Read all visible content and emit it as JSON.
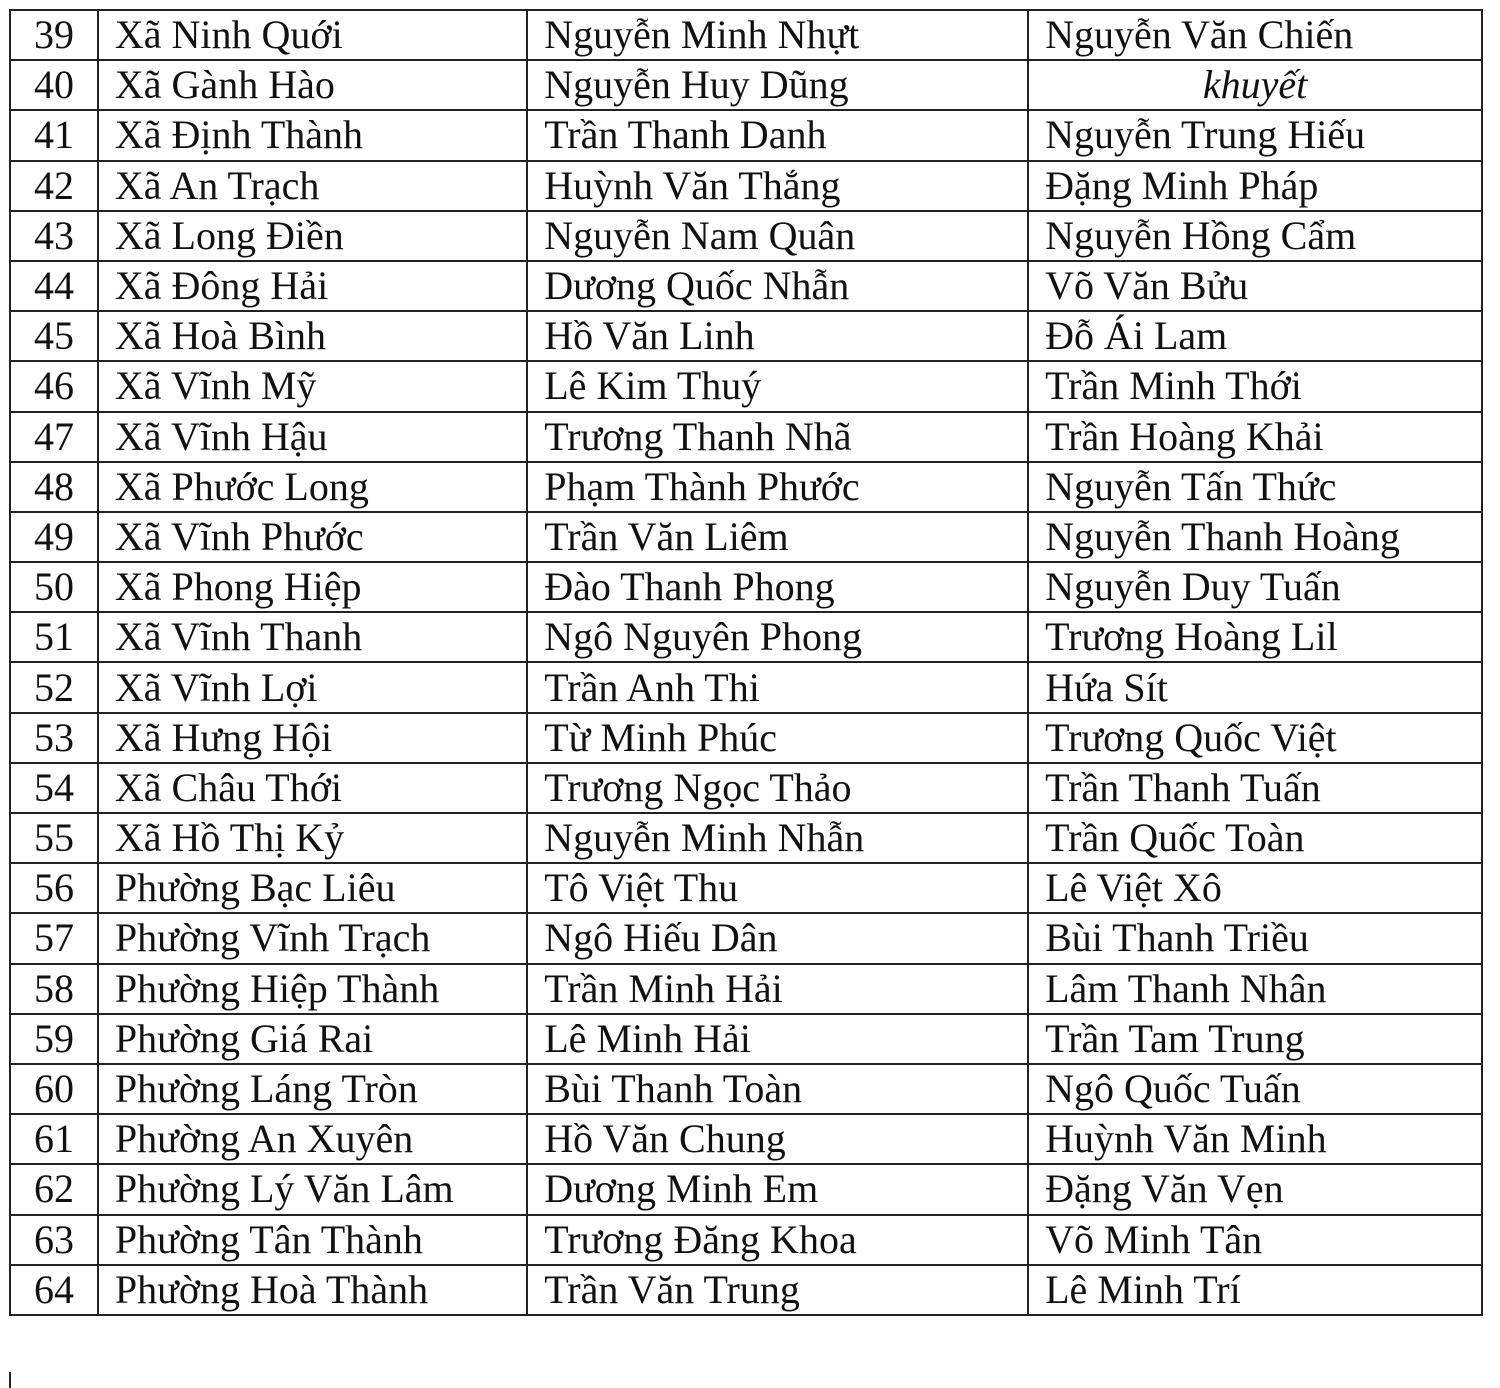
{
  "table": {
    "rows": [
      [
        "39",
        "Xã Ninh Quới",
        "Nguyễn Minh Nhựt",
        "Nguyễn Văn Chiến"
      ],
      [
        "40",
        "Xã Gành Hào",
        "Nguyễn Huy Dũng",
        "khuyết"
      ],
      [
        "41",
        "Xã Định Thành",
        "Trần Thanh Danh",
        "Nguyễn Trung Hiếu"
      ],
      [
        "42",
        "Xã An Trạch",
        "Huỳnh Văn Thắng",
        "Đặng Minh Pháp"
      ],
      [
        "43",
        "Xã Long Điền",
        "Nguyễn Nam Quân",
        "Nguyễn Hồng Cẩm"
      ],
      [
        "44",
        "Xã Đông Hải",
        "Dương Quốc Nhẫn",
        "Võ Văn Bửu"
      ],
      [
        "45",
        "Xã Hoà Bình",
        "Hồ Văn Linh",
        "Đỗ Ái Lam"
      ],
      [
        "46",
        "Xã Vĩnh Mỹ",
        "Lê Kim Thuý",
        "Trần Minh Thới"
      ],
      [
        "47",
        "Xã Vĩnh Hậu",
        "Trương Thanh Nhã",
        "Trần Hoàng Khải"
      ],
      [
        "48",
        "Xã Phước Long",
        "Phạm Thành Phước",
        "Nguyễn Tấn Thức"
      ],
      [
        "49",
        "Xã Vĩnh Phước",
        "Trần Văn Liêm",
        "Nguyễn Thanh Hoàng"
      ],
      [
        "50",
        "Xã Phong Hiệp",
        "Đào Thanh Phong",
        "Nguyễn Duy Tuấn"
      ],
      [
        "51",
        "Xã Vĩnh Thanh",
        "Ngô Nguyên Phong",
        "Trương Hoàng Lil"
      ],
      [
        "52",
        "Xã Vĩnh Lợi",
        "Trần Anh Thi",
        "Hứa Sít"
      ],
      [
        "53",
        "Xã Hưng Hội",
        "Từ Minh Phúc",
        "Trương Quốc Việt"
      ],
      [
        "54",
        "Xã Châu Thới",
        "Trương Ngọc Thảo",
        "Trần Thanh Tuấn"
      ],
      [
        "55",
        "Xã Hồ Thị Kỷ",
        "Nguyễn Minh Nhẫn",
        "Trần Quốc Toàn"
      ],
      [
        "56",
        "Phường Bạc Liêu",
        "Tô Việt Thu",
        "Lê Việt Xô"
      ],
      [
        "57",
        "Phường Vĩnh Trạch",
        "Ngô Hiếu Dân",
        "Bùi Thanh Triều"
      ],
      [
        "58",
        "Phường Hiệp Thành",
        "Trần Minh Hải",
        "Lâm Thanh Nhân"
      ],
      [
        "59",
        "Phường Giá Rai",
        "Lê Minh Hải",
        "Trần Tam Trung"
      ],
      [
        "60",
        "Phường Láng Tròn",
        "Bùi Thanh Toàn",
        "Ngô Quốc Tuấn"
      ],
      [
        "61",
        "Phường An Xuyên",
        "Hồ Văn Chung",
        "Huỳnh Văn Minh"
      ],
      [
        "62",
        "Phường Lý Văn Lâm",
        "Dương Minh Em",
        "Đặng Văn Vẹn"
      ],
      [
        "63",
        "Phường Tân Thành",
        "Trương Đăng Khoa",
        "Võ Minh Tân"
      ],
      [
        "64",
        "Phường Hoà Thành",
        "Trần Văn Trung",
        "Lê Minh Trí"
      ]
    ]
  }
}
